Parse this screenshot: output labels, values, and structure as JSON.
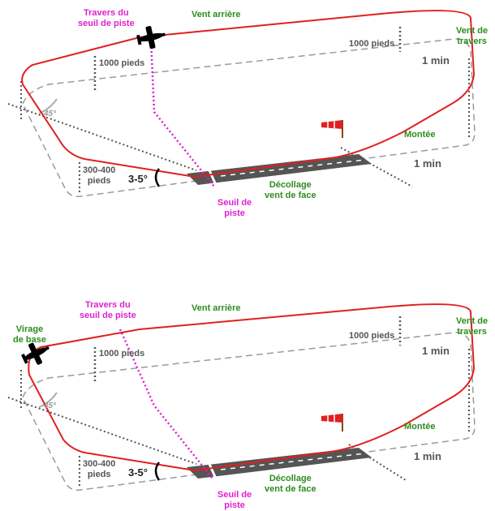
{
  "colors": {
    "circuit": "#e02020",
    "ground": "#9a9a9a",
    "threshold_line": "#e020d0",
    "runway": "#555555",
    "labels_green": "#2e8b1e",
    "labels_magenta": "#e020d0"
  },
  "icons": {
    "aircraft": "airplane-icon",
    "windsock": "windsock-icon"
  },
  "diagram_top": {
    "abeam_threshold": [
      "Travers du",
      "seuil de piste"
    ],
    "downwind": "Vent arrière",
    "crosswind": [
      "Vent de",
      "travers"
    ],
    "alt_left": "1000 pieds",
    "alt_right": "1000 pieds",
    "time_top": "1 min",
    "time_bottom": "1 min",
    "angle": "45°",
    "climb": "Montée",
    "low_alt": [
      "300-400",
      "pieds"
    ],
    "glide_angle": "3-5°",
    "takeoff": [
      "Décollage",
      "vent de face"
    ],
    "threshold": [
      "Seuil de",
      "piste"
    ]
  },
  "diagram_bottom": {
    "base_turn": [
      "Virage",
      "de base"
    ],
    "abeam_threshold": [
      "Travers du",
      "seuil de piste"
    ],
    "downwind": "Vent arrière",
    "crosswind": [
      "Vent de",
      "travers"
    ],
    "alt_left": "1000 pieds",
    "alt_right": "1000 pieds",
    "time_top": "1 min",
    "time_bottom": "1 min",
    "angle": "45°",
    "climb": "Montée",
    "low_alt": [
      "300-400",
      "pieds"
    ],
    "glide_angle": "3-5°",
    "takeoff": [
      "Décollage",
      "vent de face"
    ],
    "threshold": [
      "Seuil de",
      "piste"
    ]
  }
}
